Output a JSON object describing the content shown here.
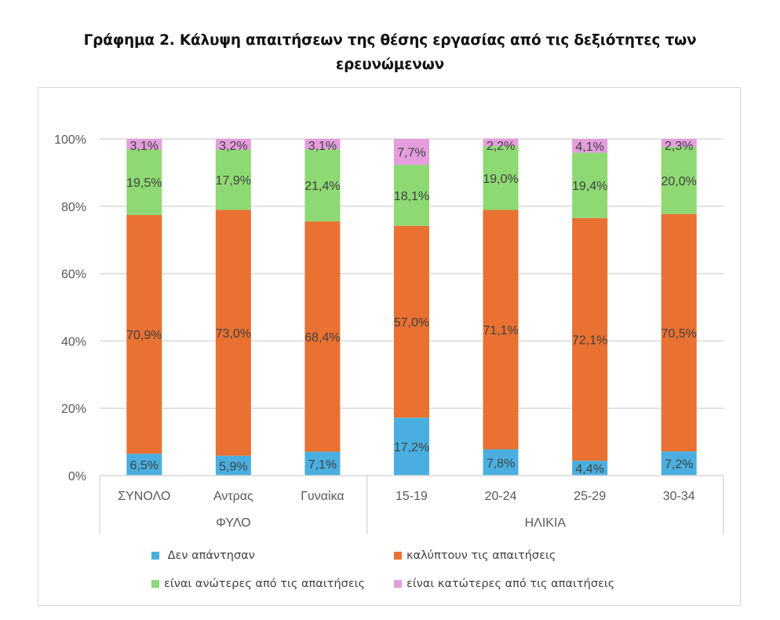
{
  "chart_data": {
    "type": "bar",
    "stacked": true,
    "percent": true,
    "title": "Γράφημα 2. Κάλυψη απαιτήσεων της θέσης εργασίας από τις δεξιότητες των ερευνώμενων",
    "title_lines": [
      "Γράφημα 2. Κάλυψη απαιτήσεων της θέσης εργασίας από τις δεξιότητες των",
      "ερευνώμενων"
    ],
    "xlabel": "",
    "ylabel": "",
    "ylim": [
      0,
      100
    ],
    "yticks": [
      "0%",
      "20%",
      "40%",
      "60%",
      "80%",
      "100%"
    ],
    "grid": true,
    "legend_position": "bottom",
    "categories": [
      "ΣΥΝΟΛΟ",
      "Αντρας",
      "Γυναίκα",
      "15-19",
      "20-24",
      "25-29",
      "30-34"
    ],
    "groups": [
      {
        "label": "ΦΥΛΟ",
        "categories": [
          "ΣΥΝΟΛΟ",
          "Αντρας",
          "Γυναίκα"
        ]
      },
      {
        "label": "ΗΛΙΚΙΑ",
        "categories": [
          "15-19",
          "20-24",
          "25-29",
          "30-34"
        ]
      }
    ],
    "series": [
      {
        "name": " Δεν απάντησαν",
        "color": "#4AAFE0",
        "values": [
          6.5,
          5.9,
          7.1,
          17.2,
          7.8,
          4.4,
          7.2
        ],
        "labels": [
          "6,5%",
          "5,9%",
          "7,1%",
          "17,2%",
          "7,8%",
          "4,4%",
          "7,2%"
        ]
      },
      {
        "name": "καλύπτουν τις απαιτήσεις",
        "color": "#E97132",
        "values": [
          70.9,
          73.0,
          68.4,
          57.0,
          71.1,
          72.1,
          70.5
        ],
        "labels": [
          "70,9%",
          "73,0%",
          "68,4%",
          "57,0%",
          "71,1%",
          "72,1%",
          "70,5%"
        ]
      },
      {
        "name": "είναι ανώτερες από τις απαιτήσεις",
        "color": "#8ED973",
        "values": [
          19.5,
          17.9,
          21.4,
          18.1,
          19.0,
          19.4,
          20.0
        ],
        "labels": [
          "19,5%",
          "17,9%",
          "21,4%",
          "18,1%",
          "19,0%",
          "19,4%",
          "20,0%"
        ]
      },
      {
        "name": "είναι κατώτερες από τις απαιτήσεις",
        "color": "#E49EDD",
        "values": [
          3.1,
          3.2,
          3.1,
          7.7,
          2.2,
          4.1,
          2.3
        ],
        "labels": [
          "3,1%",
          "3,2%",
          "3,1%",
          "7,7%",
          "2,2%",
          "4,1%",
          "2,3%"
        ]
      }
    ]
  }
}
